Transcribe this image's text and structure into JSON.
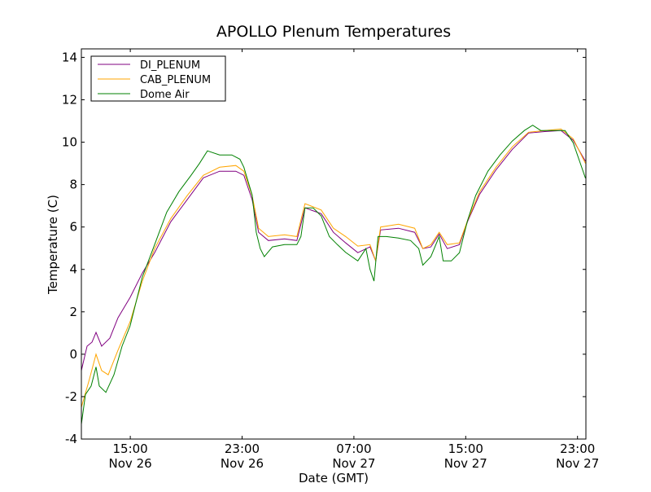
{
  "chart_data": {
    "type": "line",
    "title": "APOLLO Plenum Temperatures",
    "xlabel": "Date (GMT)",
    "ylabel": "Temperature (C)",
    "x_units": "hours since 00:00 Nov 26 (GMT)",
    "xlim": [
      11.5,
      47.6
    ],
    "ylim": [
      -4,
      14.4
    ],
    "yticks": [
      -4,
      -2,
      0,
      2,
      4,
      6,
      8,
      10,
      12,
      14
    ],
    "ytick_labels": [
      "-4",
      "-2",
      "0",
      "2",
      "4",
      "6",
      "8",
      "10",
      "12",
      "14"
    ],
    "xticks": [
      15,
      23,
      31,
      39,
      47
    ],
    "xtick_labels": [
      {
        "time": "15:00",
        "date": "Nov 26"
      },
      {
        "time": "23:00",
        "date": "Nov 26"
      },
      {
        "time": "07:00",
        "date": "Nov 27"
      },
      {
        "time": "15:00",
        "date": "Nov 27"
      },
      {
        "time": "23:00",
        "date": "Nov 27"
      }
    ],
    "grid": false,
    "legend_position": "top-left",
    "series": [
      {
        "name": "DI_PLENUM",
        "color": "#800080",
        "points": [
          [
            11.5,
            -0.77
          ],
          [
            11.91,
            0.38
          ],
          [
            12.26,
            0.57
          ],
          [
            12.55,
            1.03
          ],
          [
            12.95,
            0.38
          ],
          [
            13.54,
            0.76
          ],
          [
            14.12,
            1.72
          ],
          [
            14.99,
            2.68
          ],
          [
            15.86,
            3.83
          ],
          [
            16.74,
            4.79
          ],
          [
            17.9,
            6.25
          ],
          [
            19.06,
            7.28
          ],
          [
            20.23,
            8.32
          ],
          [
            21.39,
            8.63
          ],
          [
            22.55,
            8.63
          ],
          [
            23.13,
            8.44
          ],
          [
            23.72,
            7.28
          ],
          [
            24.18,
            5.75
          ],
          [
            24.88,
            5.36
          ],
          [
            26.04,
            5.44
          ],
          [
            26.92,
            5.36
          ],
          [
            27.5,
            6.9
          ],
          [
            28.66,
            6.63
          ],
          [
            29.53,
            5.75
          ],
          [
            30.41,
            5.25
          ],
          [
            31.28,
            4.79
          ],
          [
            32.15,
            5.06
          ],
          [
            32.56,
            4.4
          ],
          [
            32.91,
            5.86
          ],
          [
            34.19,
            5.94
          ],
          [
            35.35,
            5.75
          ],
          [
            35.93,
            4.98
          ],
          [
            36.51,
            5.06
          ],
          [
            37.1,
            5.67
          ],
          [
            37.68,
            4.98
          ],
          [
            38.55,
            5.17
          ],
          [
            39.13,
            6.25
          ],
          [
            40.0,
            7.55
          ],
          [
            41.17,
            8.7
          ],
          [
            42.33,
            9.66
          ],
          [
            43.5,
            10.43
          ],
          [
            44.66,
            10.5
          ],
          [
            45.82,
            10.55
          ],
          [
            46.69,
            10.09
          ],
          [
            47.57,
            9.1
          ]
        ]
      },
      {
        "name": "CAB_PLENUM",
        "color": "#ffa500",
        "points": [
          [
            11.5,
            -2.5
          ],
          [
            12.08,
            -1.16
          ],
          [
            12.55,
            0.0
          ],
          [
            12.95,
            -0.77
          ],
          [
            13.42,
            -0.97
          ],
          [
            14.12,
            0.19
          ],
          [
            14.99,
            1.53
          ],
          [
            15.86,
            3.45
          ],
          [
            16.74,
            4.98
          ],
          [
            17.9,
            6.4
          ],
          [
            19.06,
            7.47
          ],
          [
            20.23,
            8.44
          ],
          [
            21.39,
            8.82
          ],
          [
            22.55,
            8.9
          ],
          [
            23.13,
            8.63
          ],
          [
            23.72,
            7.47
          ],
          [
            24.18,
            5.94
          ],
          [
            24.88,
            5.55
          ],
          [
            26.04,
            5.63
          ],
          [
            26.92,
            5.55
          ],
          [
            27.5,
            7.1
          ],
          [
            28.66,
            6.8
          ],
          [
            29.53,
            5.94
          ],
          [
            30.41,
            5.55
          ],
          [
            31.28,
            5.1
          ],
          [
            32.15,
            5.17
          ],
          [
            32.56,
            4.4
          ],
          [
            32.91,
            6.0
          ],
          [
            34.19,
            6.13
          ],
          [
            35.35,
            5.94
          ],
          [
            35.93,
            4.98
          ],
          [
            36.51,
            5.17
          ],
          [
            37.1,
            5.75
          ],
          [
            37.68,
            5.17
          ],
          [
            38.55,
            5.25
          ],
          [
            39.13,
            6.3
          ],
          [
            40.0,
            7.67
          ],
          [
            41.17,
            8.82
          ],
          [
            42.33,
            9.78
          ],
          [
            43.5,
            10.47
          ],
          [
            44.66,
            10.55
          ],
          [
            45.82,
            10.62
          ],
          [
            46.69,
            10.16
          ],
          [
            47.57,
            9.0
          ]
        ]
      },
      {
        "name": "Dome Air",
        "color": "#008000",
        "points": [
          [
            11.5,
            -3.3
          ],
          [
            11.79,
            -1.9
          ],
          [
            12.2,
            -1.5
          ],
          [
            12.55,
            -0.6
          ],
          [
            12.78,
            -1.5
          ],
          [
            13.25,
            -1.8
          ],
          [
            13.83,
            -0.97
          ],
          [
            14.41,
            0.38
          ],
          [
            14.99,
            1.34
          ],
          [
            15.86,
            3.64
          ],
          [
            16.74,
            5.17
          ],
          [
            17.61,
            6.7
          ],
          [
            18.48,
            7.67
          ],
          [
            19.35,
            8.44
          ],
          [
            19.94,
            8.99
          ],
          [
            20.52,
            9.59
          ],
          [
            21.39,
            9.4
          ],
          [
            22.26,
            9.4
          ],
          [
            22.84,
            9.2
          ],
          [
            23.13,
            8.82
          ],
          [
            23.72,
            7.5
          ],
          [
            24.01,
            5.75
          ],
          [
            24.3,
            4.98
          ],
          [
            24.59,
            4.6
          ],
          [
            25.17,
            5.06
          ],
          [
            26.04,
            5.17
          ],
          [
            26.92,
            5.17
          ],
          [
            27.21,
            5.55
          ],
          [
            27.5,
            6.9
          ],
          [
            28.08,
            6.9
          ],
          [
            28.66,
            6.52
          ],
          [
            29.24,
            5.55
          ],
          [
            29.82,
            5.17
          ],
          [
            30.41,
            4.8
          ],
          [
            31.28,
            4.4
          ],
          [
            31.86,
            4.98
          ],
          [
            32.15,
            4.0
          ],
          [
            32.44,
            3.45
          ],
          [
            32.73,
            5.55
          ],
          [
            33.32,
            5.55
          ],
          [
            34.19,
            5.48
          ],
          [
            35.06,
            5.36
          ],
          [
            35.64,
            4.98
          ],
          [
            35.93,
            4.2
          ],
          [
            36.51,
            4.6
          ],
          [
            37.1,
            5.55
          ],
          [
            37.39,
            4.4
          ],
          [
            37.97,
            4.4
          ],
          [
            38.55,
            4.79
          ],
          [
            39.13,
            6.3
          ],
          [
            39.71,
            7.48
          ],
          [
            40.59,
            8.63
          ],
          [
            41.46,
            9.4
          ],
          [
            42.33,
            10.05
          ],
          [
            43.2,
            10.55
          ],
          [
            43.79,
            10.8
          ],
          [
            44.37,
            10.55
          ],
          [
            45.24,
            10.55
          ],
          [
            46.11,
            10.55
          ],
          [
            46.69,
            9.97
          ],
          [
            47.57,
            8.3
          ]
        ]
      }
    ]
  }
}
